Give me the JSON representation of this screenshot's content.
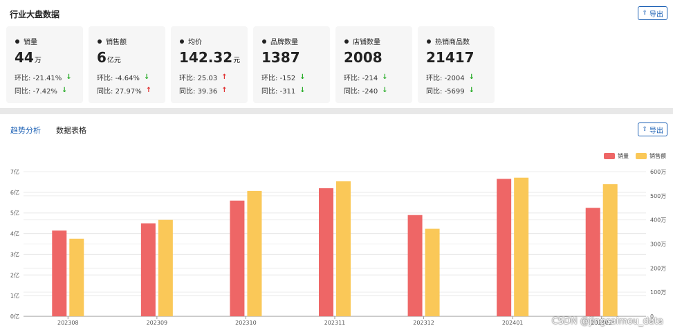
{
  "top": {
    "title": "行业大盘数据",
    "export_label": "导出",
    "cards": [
      {
        "label": "销量",
        "value": "44",
        "unit": "万",
        "hb_label": "环比:",
        "hb": "-21.41%",
        "hb_dir": "down",
        "tb_label": "同比:",
        "tb": "-7.42%",
        "tb_dir": "down"
      },
      {
        "label": "销售额",
        "value": "6",
        "unit": "亿元",
        "hb_label": "环比:",
        "hb": "-4.64%",
        "hb_dir": "down",
        "tb_label": "同比:",
        "tb": "27.97%",
        "tb_dir": "up"
      },
      {
        "label": "均价",
        "value": "142.32",
        "unit": "元",
        "hb_label": "环比:",
        "hb": "25.03",
        "hb_dir": "up",
        "tb_label": "同比:",
        "tb": "39.36",
        "tb_dir": "up"
      },
      {
        "label": "品牌数量",
        "value": "1387",
        "unit": "",
        "hb_label": "环比:",
        "hb": "-152",
        "hb_dir": "down",
        "tb_label": "同比:",
        "tb": "-311",
        "tb_dir": "down"
      },
      {
        "label": "店铺数量",
        "value": "2008",
        "unit": "",
        "hb_label": "环比:",
        "hb": "-214",
        "hb_dir": "down",
        "tb_label": "同比:",
        "tb": "-240",
        "tb_dir": "down"
      },
      {
        "label": "热销商品数",
        "value": "21417",
        "unit": "",
        "hb_label": "环比:",
        "hb": "-2004",
        "hb_dir": "down",
        "tb_label": "同比:",
        "tb": "-5699",
        "tb_dir": "down"
      }
    ]
  },
  "bottom": {
    "tabs": [
      {
        "label": "趋势分析",
        "active": true
      },
      {
        "label": "数据表格",
        "active": false
      }
    ],
    "export_label": "导出",
    "watermark": "CSDN @jingcaimou_data"
  },
  "colors": {
    "series1": "#ee6666",
    "series2": "#fac858",
    "accent": "#1a5fb4",
    "down": "#22aa22",
    "up": "#e03030"
  },
  "icons": {
    "export": "upload-icon",
    "down": "arrow-down-icon",
    "up": "arrow-up-icon"
  },
  "chart_data": {
    "type": "bar",
    "categories": [
      "202308",
      "202309",
      "202310",
      "202311",
      "202312",
      "202401",
      "202402"
    ],
    "series": [
      {
        "name": "销量",
        "axis": "left",
        "values": [
          4.15,
          4.5,
          5.6,
          6.2,
          4.9,
          6.65,
          5.25
        ]
      },
      {
        "name": "销售额",
        "axis": "right",
        "values": [
          3.22,
          4.0,
          5.2,
          5.6,
          3.63,
          5.75,
          5.48
        ]
      }
    ],
    "left_axis": {
      "ticks": [
        "0亿",
        "1亿",
        "2亿",
        "3亿",
        "4亿",
        "5亿",
        "6亿",
        "7亿"
      ],
      "ylim": [
        0,
        7
      ]
    },
    "right_axis": {
      "ticks": [
        "0",
        "100万",
        "200万",
        "300万",
        "400万",
        "500万",
        "600万"
      ],
      "ylim": [
        0,
        6
      ]
    },
    "legend_placement": "top-right",
    "grid": true
  }
}
